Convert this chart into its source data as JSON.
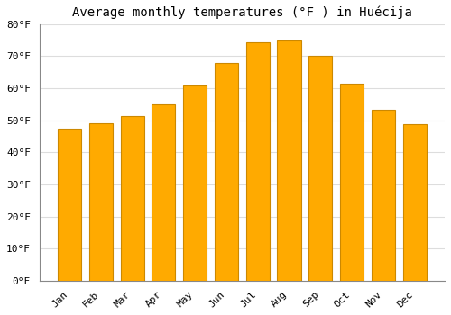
{
  "title": "Average monthly temperatures (°F ) in Huécija",
  "months": [
    "Jan",
    "Feb",
    "Mar",
    "Apr",
    "May",
    "Jun",
    "Jul",
    "Aug",
    "Sep",
    "Oct",
    "Nov",
    "Dec"
  ],
  "values": [
    47.3,
    49.1,
    51.3,
    55.0,
    61.0,
    68.0,
    74.3,
    75.0,
    70.0,
    61.3,
    53.4,
    48.9
  ],
  "bar_color": "#FFAA00",
  "bar_edge_color": "#CC8800",
  "background_color": "#FFFFFF",
  "grid_color": "#DDDDDD",
  "ylim": [
    0,
    80
  ],
  "yticks": [
    0,
    10,
    20,
    30,
    40,
    50,
    60,
    70,
    80
  ],
  "title_fontsize": 10,
  "tick_fontsize": 8,
  "figwidth": 5.0,
  "figheight": 3.5,
  "dpi": 100
}
